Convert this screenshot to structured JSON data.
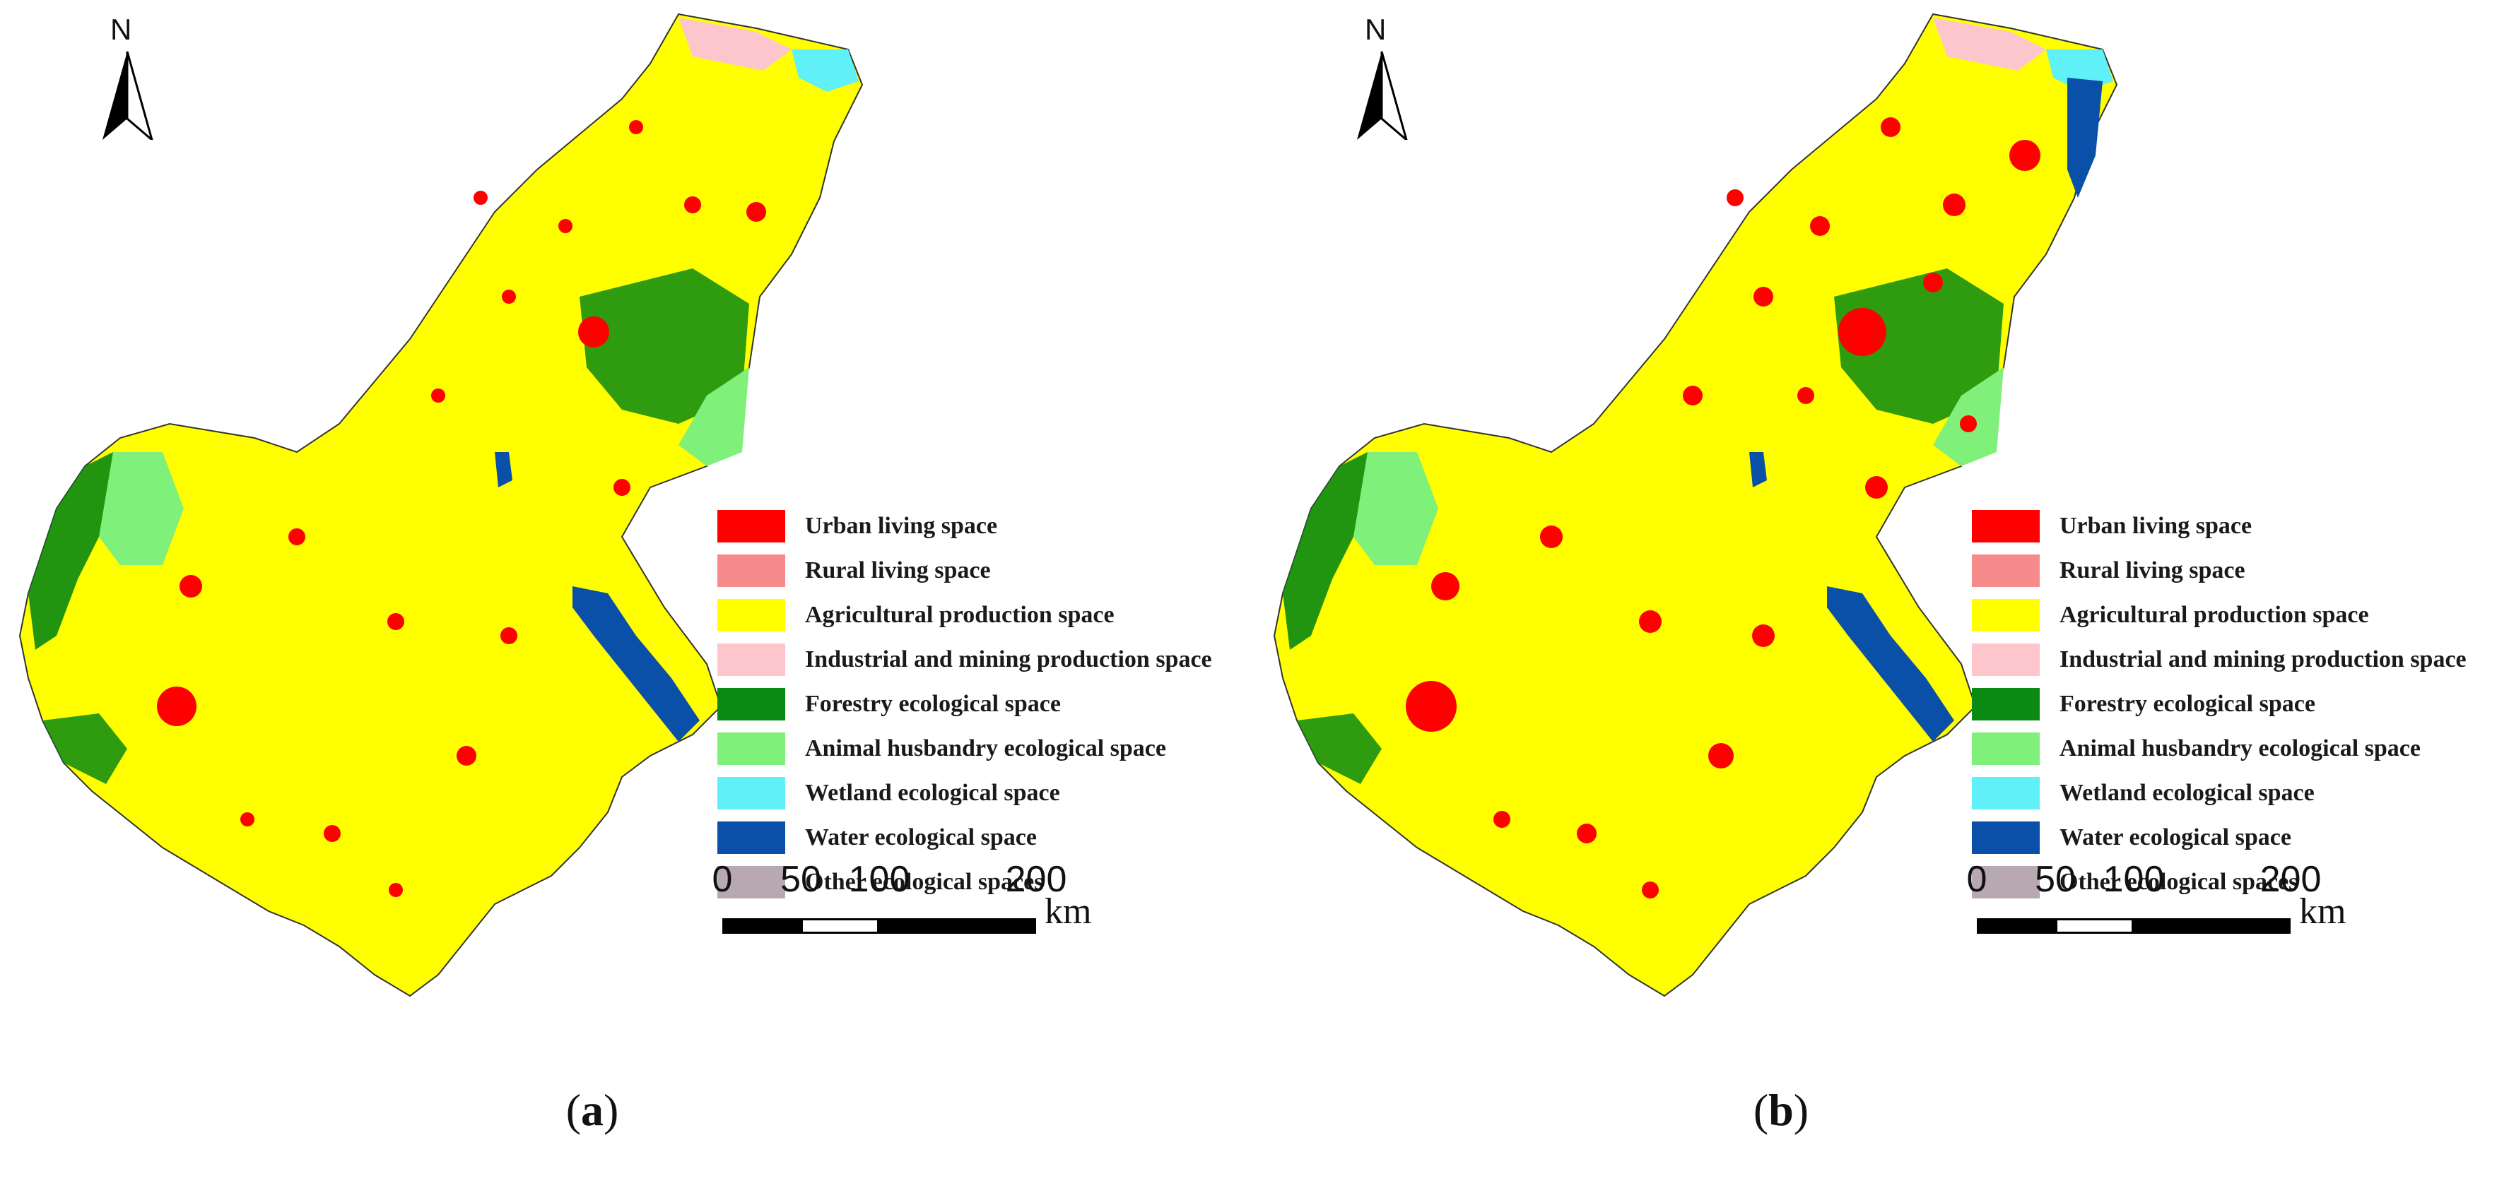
{
  "figure": {
    "panels": [
      {
        "caption_open": "(",
        "caption_letter": "a",
        "caption_close": ")"
      },
      {
        "caption_open": "(",
        "caption_letter": "b",
        "caption_close": ")"
      }
    ],
    "north_label": "N",
    "legend": [
      {
        "label": "Urban living space",
        "color": "#ff0000"
      },
      {
        "label": "Rural living space",
        "color": "#f78a8a"
      },
      {
        "label": "Agricultural production space",
        "color": "#ffff00"
      },
      {
        "label": "Industrial and mining production space",
        "color": "#fdc6cc"
      },
      {
        "label": "Forestry ecological space",
        "color": "#0a8a12"
      },
      {
        "label": "Animal husbandry ecological space",
        "color": "#7ff07a"
      },
      {
        "label": "Wetland ecological space",
        "color": "#5ff0f8"
      },
      {
        "label": "Water ecological space",
        "color": "#0a50a8"
      },
      {
        "label": "Other ecological spaces",
        "color": "#b8a8b2"
      }
    ],
    "scale": {
      "ticks": [
        "0",
        "50",
        "100",
        "200"
      ],
      "unit": "km"
    }
  }
}
